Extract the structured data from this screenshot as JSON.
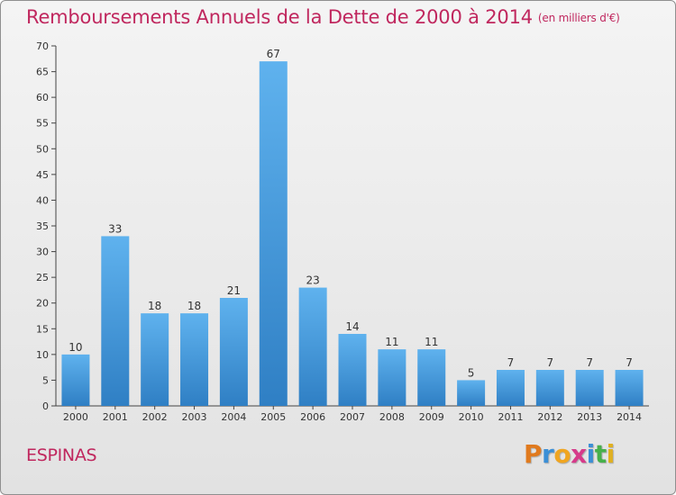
{
  "chart_data": {
    "type": "bar",
    "title": "Remboursements Annuels de la Dette de 2000 à 2014",
    "subtitle": "(en milliers d'€)",
    "xlabel": "",
    "ylabel": "",
    "categories": [
      "2000",
      "2001",
      "2002",
      "2003",
      "2004",
      "2005",
      "2006",
      "2007",
      "2008",
      "2009",
      "2010",
      "2011",
      "2012",
      "2013",
      "2014"
    ],
    "values": [
      10,
      33,
      18,
      18,
      21,
      67,
      23,
      14,
      11,
      11,
      5,
      7,
      7,
      7,
      7
    ],
    "ylim": [
      0,
      70
    ],
    "yticks": [
      0,
      5,
      10,
      15,
      20,
      25,
      30,
      35,
      40,
      45,
      50,
      55,
      60,
      65,
      70
    ],
    "grid": false,
    "bar_color": "#4a9fe0"
  },
  "commune": "ESPINAS",
  "logo": {
    "letters": [
      "P",
      "r",
      "o",
      "x",
      "i",
      "t",
      "i"
    ]
  }
}
